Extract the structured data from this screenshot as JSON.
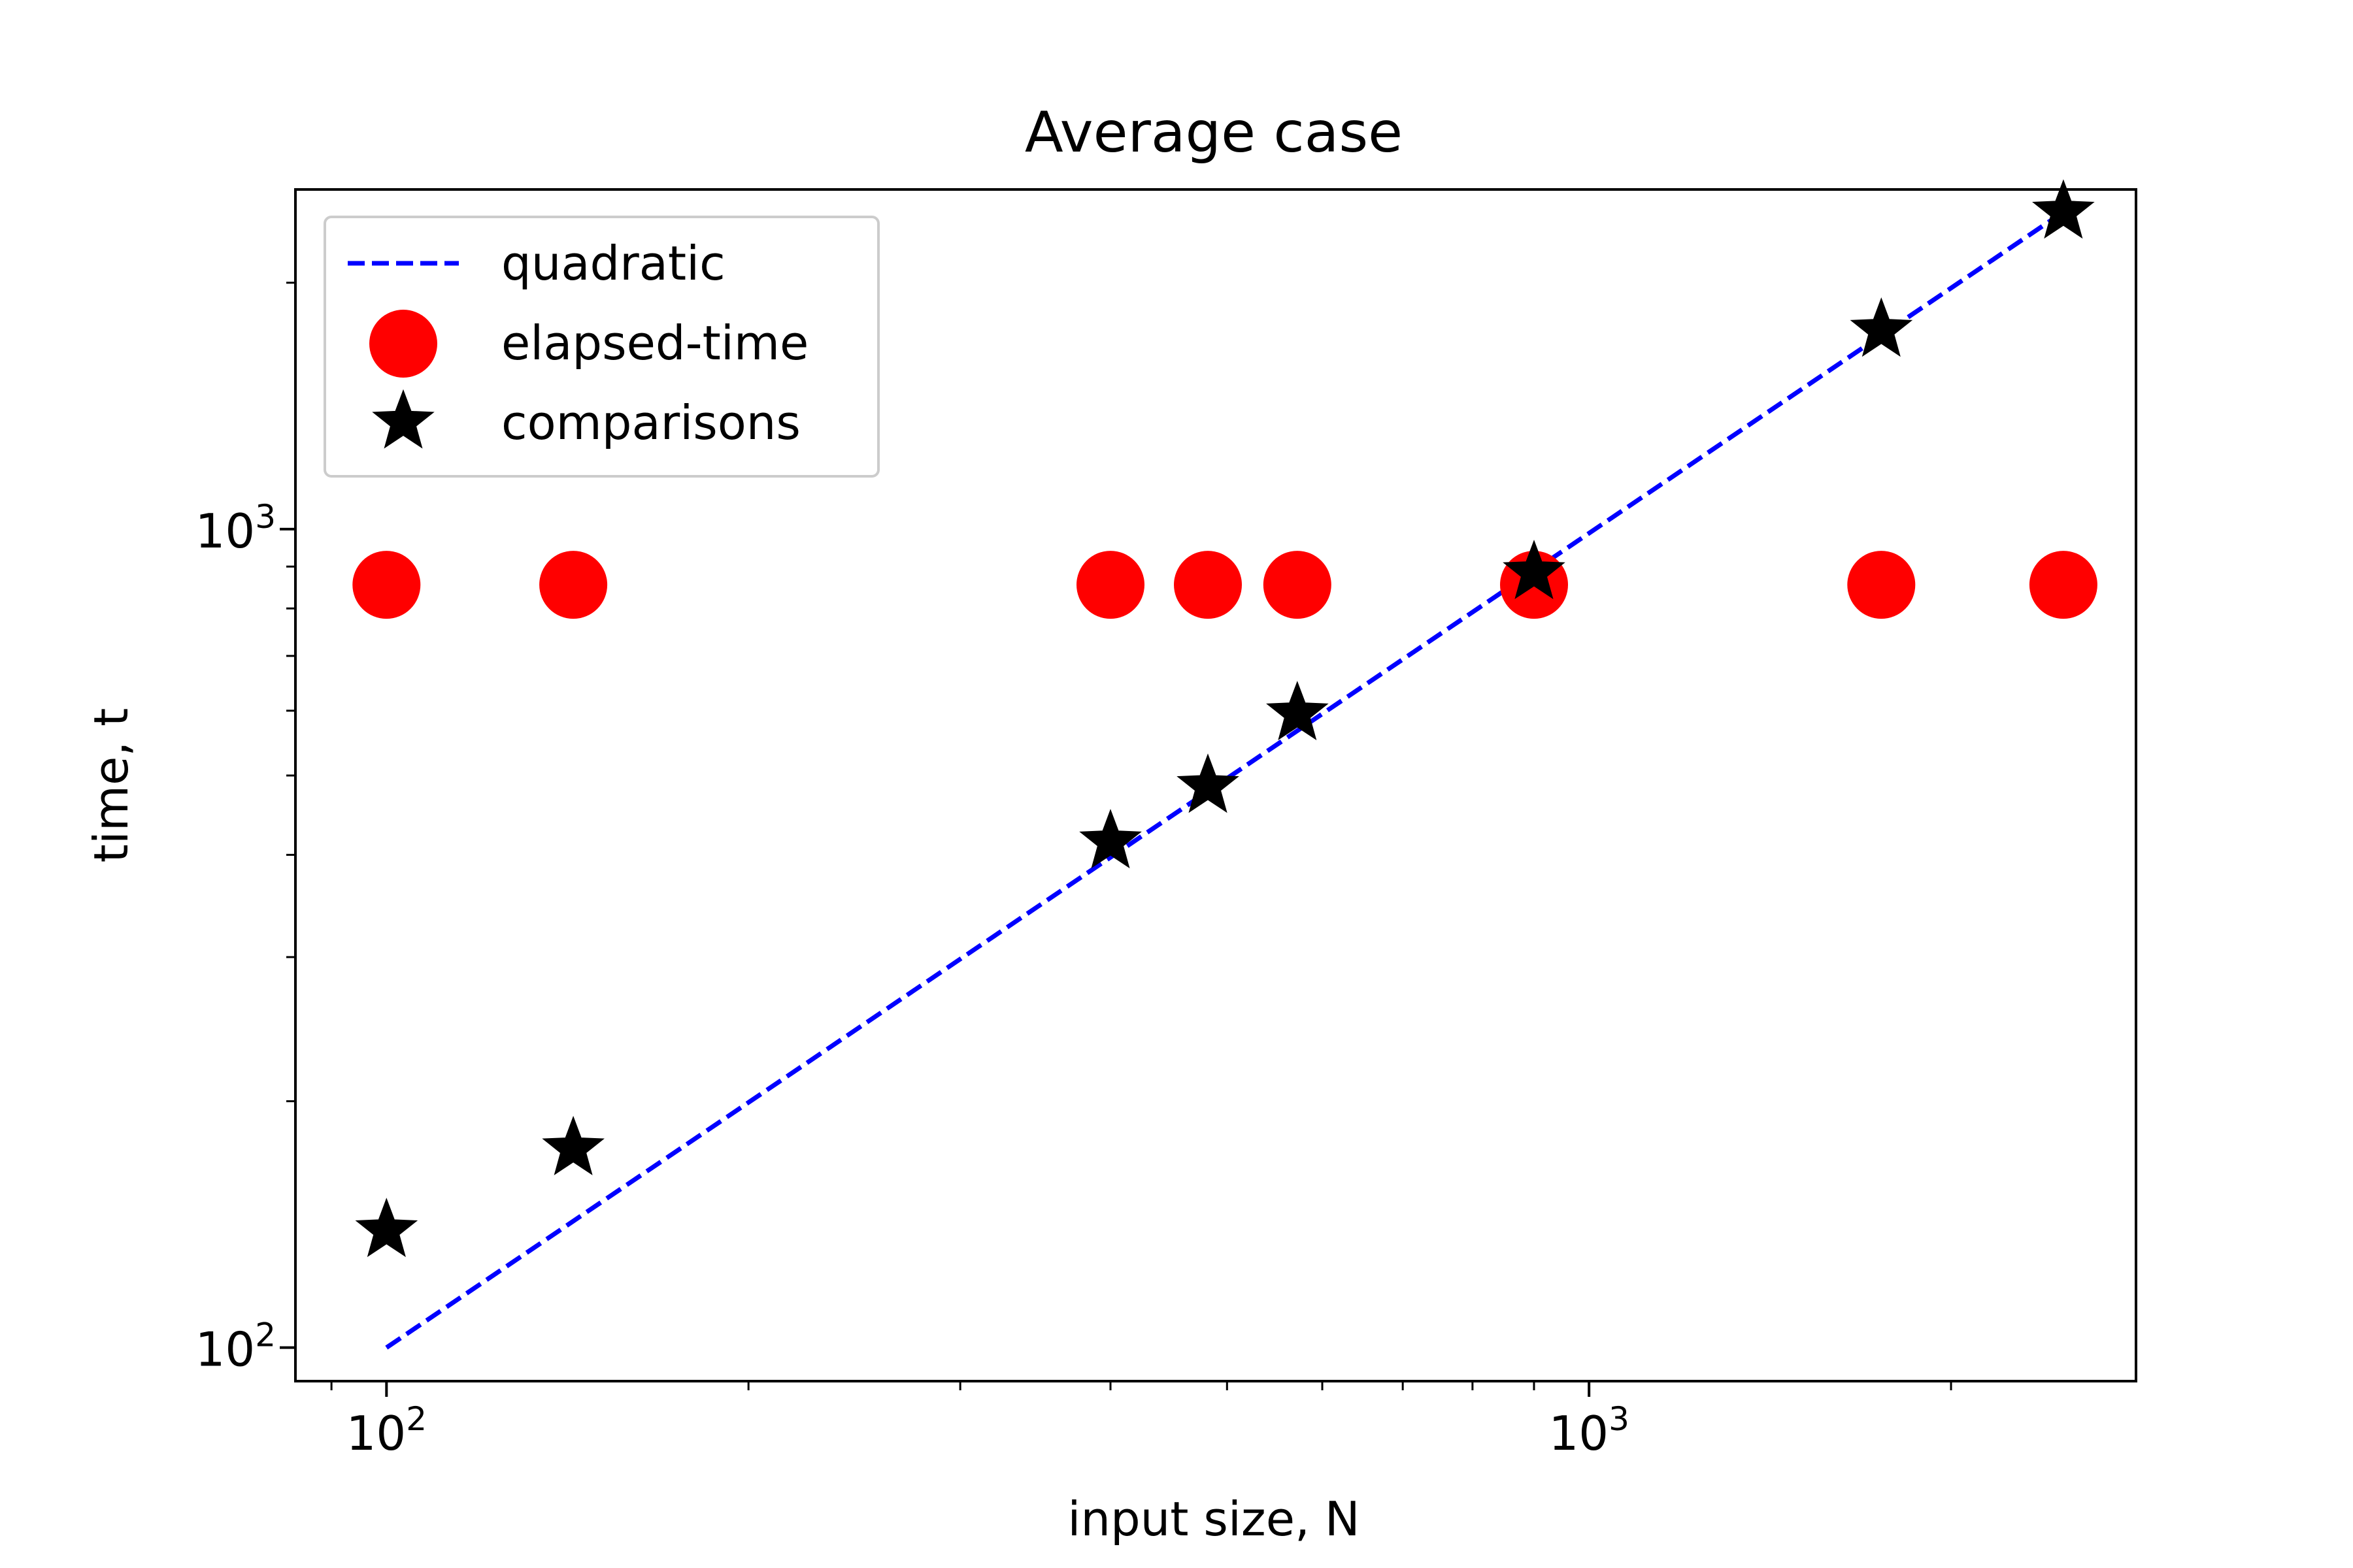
{
  "colors": {
    "quadratic": "#0000ff",
    "elapsed_time": "#ff0000",
    "comparisons": "#000000",
    "legend_border": "#cccccc"
  },
  "chart_data": {
    "type": "scatter",
    "title": "Average case",
    "xlabel": "input size, N",
    "ylabel": "time, t",
    "xscale": "log",
    "yscale": "log",
    "xlim": [
      84,
      2850
    ],
    "ylim": [
      91,
      2600
    ],
    "grid": false,
    "legend_position": "upper-left",
    "x_ticks": [
      {
        "value": 100,
        "base": "10",
        "exp": "2"
      },
      {
        "value": 1000,
        "base": "10",
        "exp": "3"
      }
    ],
    "y_ticks": [
      {
        "value": 100,
        "base": "10",
        "exp": "2"
      },
      {
        "value": 1000,
        "base": "10",
        "exp": "3"
      }
    ],
    "series": [
      {
        "name": "quadratic",
        "kind": "line",
        "style": "dashed",
        "x": [
          100,
          2500
        ],
        "y": [
          100,
          2460
        ]
      },
      {
        "name": "elapsed-time",
        "kind": "marker",
        "marker": "circle",
        "x": [
          100,
          143,
          400,
          482,
          572,
          900,
          1750,
          2480
        ],
        "y": [
          855,
          855,
          855,
          855,
          855,
          855,
          855,
          855
        ]
      },
      {
        "name": "comparisons",
        "kind": "marker",
        "marker": "star",
        "x": [
          100,
          143,
          400,
          482,
          572,
          900,
          1750,
          2480
        ],
        "y": [
          139,
          175,
          415,
          485,
          595,
          885,
          1750,
          2440
        ]
      }
    ]
  }
}
